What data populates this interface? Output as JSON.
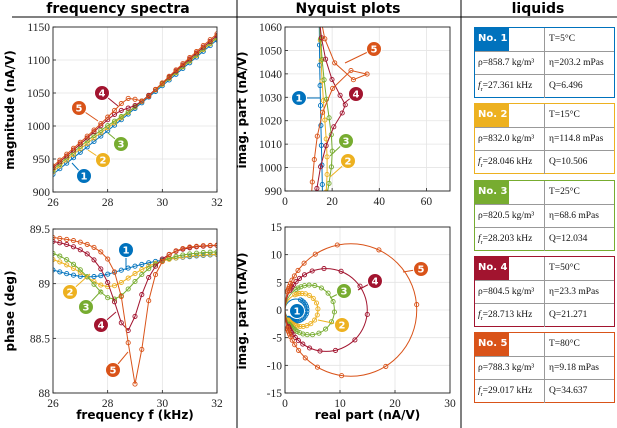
{
  "panels": {
    "spectra_title": "frequency spectra",
    "nyquist_title": "Nyquist plots",
    "liquids_title": "liquids"
  },
  "colors": [
    "#0072BD",
    "#EDB120",
    "#77AC30",
    "#A2142F",
    "#D95319"
  ],
  "callout_labels": [
    "1",
    "2",
    "3",
    "4",
    "5"
  ],
  "liquids": {
    "fr_symbol": "f",
    "fr_sub": "r",
    "items": [
      {
        "no": "No. 1",
        "T": "T=5°C",
        "rho": "ρ=858.7 kg/m³",
        "eta": "η=203.2 mPas",
        "fr": "=27.361 kHz",
        "Q": "Q=6.496"
      },
      {
        "no": "No. 2",
        "T": "T=15°C",
        "rho": "ρ=832.0 kg/m³",
        "eta": "η=114.8 mPas",
        "fr": "=28.046 kHz",
        "Q": "Q=10.506"
      },
      {
        "no": "No. 3",
        "T": "T=25°C",
        "rho": "ρ=820.5 kg/m³",
        "eta": "η=68.6 mPas",
        "fr": "=28.203 kHz",
        "Q": "Q=12.034"
      },
      {
        "no": "No. 4",
        "T": "T=50°C",
        "rho": "ρ=804.5 kg/m³",
        "eta": "η=23.3 mPas",
        "fr": "=28.713 kHz",
        "Q": "Q=21.271"
      },
      {
        "no": "No. 5",
        "T": "T=80°C",
        "rho": "ρ=788.3 kg/m³",
        "eta": "η=9.18 mPas",
        "fr": "=29.017 kHz",
        "Q": "Q=34.637"
      }
    ]
  },
  "chart_data": [
    {
      "type": "line",
      "xlabel": "",
      "ylabel": "magnitude (nA/V)",
      "xlim": [
        26,
        32
      ],
      "ylim": [
        900,
        1150
      ],
      "xticks": [
        26,
        28,
        30,
        32
      ],
      "yticks": [
        900,
        950,
        1000,
        1050,
        1100,
        1150
      ],
      "grid": true,
      "x": [
        26,
        26.25,
        26.5,
        26.75,
        27,
        27.25,
        27.5,
        27.75,
        28,
        28.25,
        28.5,
        28.75,
        29,
        29.25,
        29.5,
        29.75,
        30,
        30.25,
        30.5,
        30.75,
        31,
        31.25,
        31.5,
        31.75,
        32
      ],
      "series": [
        {
          "values": [
            926.8,
            935.3,
            943.7,
            952.0,
            960.2,
            968.3,
            976.5,
            984.7,
            992.9,
            1001.2,
            1009.6,
            1018.1,
            1026.6,
            1035.1,
            1043.8,
            1052.4,
            1061.1,
            1069.7,
            1078.4,
            1087.1,
            1095.8,
            1104.4,
            1113.2,
            1121.8,
            1130.5
          ]
        },
        {
          "values": [
            930.7,
            939.5,
            948.3,
            956.9,
            965.4,
            973.7,
            981.9,
            989.7,
            997.2,
            1004.7,
            1012.4,
            1020.4,
            1028.7,
            1037.1,
            1045.8,
            1054.5,
            1063.2,
            1071.9,
            1080.8,
            1089.5,
            1098.2,
            1107.0,
            1115.8,
            1124.5,
            1133.2
          ]
        },
        {
          "values": [
            933.7,
            942.6,
            951.5,
            960.3,
            969.0,
            977.5,
            985.8,
            993.4,
            1000.5,
            1007.2,
            1014.2,
            1021.4,
            1029.3,
            1037.6,
            1046.3,
            1055.1,
            1063.9,
            1072.7,
            1081.7,
            1090.5,
            1099.3,
            1108.1,
            1117.0,
            1125.7,
            1134.5
          ]
        },
        {
          "values": [
            936.5,
            945.4,
            954.5,
            963.5,
            972.6,
            981.8,
            991.2,
            1000.5,
            1009.5,
            1017.6,
            1023.6,
            1027.1,
            1031.1,
            1037.8,
            1046.4,
            1055.5,
            1064.8,
            1074.1,
            1083.4,
            1092.4,
            1101.4,
            1110.4,
            1119.4,
            1128.2,
            1137.0
          ]
        },
        {
          "values": [
            939.3,
            948.2,
            957.2,
            966.2,
            975.3,
            984.5,
            993.9,
            1003.5,
            1013.5,
            1023.7,
            1034.0,
            1041.8,
            1040.5,
            1037.9,
            1044.9,
            1055.1,
            1065.3,
            1075.3,
            1085.0,
            1094.4,
            1103.7,
            1112.8,
            1121.9,
            1130.8,
            1139.7
          ]
        }
      ]
    },
    {
      "type": "line",
      "xlabel": "frequency f (kHz)",
      "ylabel": "phase (deg)",
      "xlim": [
        26,
        32
      ],
      "ylim": [
        88,
        89.5
      ],
      "xticks": [
        26,
        28,
        30,
        32
      ],
      "yticks": [
        88,
        88.5,
        89,
        89.5
      ],
      "grid": true,
      "x": [
        26,
        26.25,
        26.5,
        26.75,
        27,
        27.25,
        27.5,
        27.75,
        28,
        28.25,
        28.5,
        28.75,
        29,
        29.25,
        29.5,
        29.75,
        30,
        30.25,
        30.5,
        30.75,
        31,
        31.25,
        31.5,
        31.75,
        32
      ],
      "series": [
        {
          "values": [
            89.125,
            89.108,
            89.091,
            89.077,
            89.067,
            89.062,
            89.065,
            89.073,
            89.087,
            89.104,
            89.123,
            89.142,
            89.16,
            89.176,
            89.191,
            89.204,
            89.215,
            89.225,
            89.234,
            89.241,
            89.247,
            89.253,
            89.258,
            89.262,
            89.266
          ]
        },
        {
          "values": [
            89.22,
            89.199,
            89.172,
            89.14,
            89.103,
            89.061,
            89.02,
            88.987,
            88.973,
            88.981,
            89.011,
            89.051,
            89.092,
            89.13,
            89.162,
            89.186,
            89.206,
            89.223,
            89.235,
            89.244,
            89.252,
            89.258,
            89.263,
            89.266,
            89.269
          ]
        },
        {
          "values": [
            89.277,
            89.252,
            89.219,
            89.177,
            89.127,
            89.064,
            88.994,
            88.924,
            88.872,
            88.859,
            88.89,
            88.951,
            89.02,
            89.084,
            89.137,
            89.177,
            89.209,
            89.232,
            89.249,
            89.262,
            89.272,
            89.279,
            89.284,
            89.288,
            89.291
          ]
        },
        {
          "values": [
            89.386,
            89.374,
            89.358,
            89.337,
            89.31,
            89.272,
            89.217,
            89.135,
            89.011,
            88.834,
            88.642,
            88.572,
            88.701,
            88.9,
            89.056,
            89.16,
            89.226,
            89.268,
            89.296,
            89.315,
            89.328,
            89.337,
            89.343,
            89.347,
            89.349
          ]
        },
        {
          "values": [
            89.422,
            89.414,
            89.405,
            89.394,
            89.379,
            89.359,
            89.332,
            89.291,
            89.225,
            89.108,
            88.882,
            88.46,
            88.081,
            88.399,
            88.844,
            89.083,
            89.202,
            89.265,
            89.301,
            89.322,
            89.335,
            89.342,
            89.347,
            89.35,
            89.352
          ]
        }
      ]
    },
    {
      "type": "line",
      "xlabel": "",
      "ylabel": "imag. part (nA/V)",
      "xlim": [
        0,
        70
      ],
      "ylim": [
        990,
        1060
      ],
      "xticks": [
        0,
        20,
        40,
        60
      ],
      "yticks": [
        990,
        1000,
        1010,
        1020,
        1030,
        1040,
        1050,
        1060
      ],
      "grid": true
    },
    {
      "type": "line",
      "xlabel": "real part (nA/V)",
      "ylabel": "imag. part (nA/V)",
      "xlim": [
        0,
        30
      ],
      "ylim": [
        -15,
        15
      ],
      "xticks": [
        0,
        10,
        20,
        30
      ],
      "yticks": [
        -15,
        -10,
        -5,
        0,
        5,
        10,
        15
      ],
      "grid": true,
      "series": [
        {
          "re": [
            2.82,
            3.13,
            3.43,
            3.69,
            3.89,
            3.99,
            3.98,
            3.87,
            3.66,
            3.4,
            3.09,
            2.79,
            2.49,
            2.22,
            1.97,
            1.75,
            1.56,
            1.39,
            1.24,
            1.11,
            1.0,
            0.91,
            0.82,
            0.75,
            0.68
          ],
          "im": [
            1.82,
            1.65,
            1.4,
            1.07,
            0.67,
            0.21,
            -0.26,
            -0.72,
            -1.11,
            -1.43,
            -1.67,
            -1.84,
            -1.94,
            -1.99,
            -2.0,
            -1.98,
            -1.95,
            -1.91,
            -1.85,
            -1.79,
            -1.73,
            -1.68,
            -1.61,
            -1.56,
            -1.5
          ]
        },
        {
          "re": [
            1.79,
            2.13,
            2.56,
            3.09,
            3.72,
            4.43,
            5.14,
            5.72,
            5.99,
            5.87,
            5.38,
            4.69,
            3.97,
            3.31,
            2.74,
            2.28,
            1.91,
            1.61,
            1.37,
            1.18,
            1.02,
            0.89,
            0.78,
            0.69,
            0.61
          ],
          "im": [
            2.74,
            2.87,
            2.96,
            3.0,
            2.92,
            2.64,
            2.1,
            1.27,
            0.2,
            -0.9,
            -1.83,
            -2.47,
            -2.84,
            -2.99,
            -2.98,
            -2.91,
            -2.8,
            -2.66,
            -2.52,
            -2.39,
            -2.26,
            -2.14,
            -2.02,
            -1.91,
            -1.81
          ]
        },
        {
          "re": [
            1.99,
            2.38,
            2.89,
            3.55,
            4.38,
            5.42,
            6.62,
            7.83,
            8.74,
            8.98,
            8.46,
            7.39,
            6.16,
            5.0,
            4.04,
            3.28,
            2.68,
            2.22,
            1.86,
            1.57,
            1.34,
            1.16,
            1.01,
            0.89,
            0.78
          ],
          "im": [
            3.74,
            3.97,
            4.2,
            4.4,
            4.5,
            4.41,
            3.97,
            3.03,
            1.51,
            -0.36,
            -2.14,
            -3.45,
            -4.19,
            -4.47,
            -4.47,
            -4.33,
            -4.11,
            -3.88,
            -3.65,
            -3.41,
            -3.2,
            -3.02,
            -2.84,
            -2.69,
            -2.53
          ]
        },
        {
          "re": [
            0.87,
            1.05,
            1.28,
            1.59,
            2.02,
            2.63,
            3.55,
            4.94,
            7.09,
            10.2,
            13.64,
            14.96,
            12.7,
            9.18,
            6.36,
            4.47,
            3.23,
            2.43,
            1.87,
            1.48,
            1.2,
            0.99,
            0.83,
            0.71,
            0.61
          ],
          "im": [
            3.51,
            3.82,
            4.19,
            4.61,
            5.12,
            5.71,
            6.37,
            7.05,
            7.49,
            7.0,
            4.31,
            -0.82,
            -5.4,
            -7.31,
            -7.42,
            -6.87,
            -6.16,
            -5.53,
            -4.95,
            -4.47,
            -4.07,
            -3.72,
            -3.43,
            -3.2,
            -2.97
          ]
        },
        {
          "re": [
            0.45,
            0.54,
            0.65,
            0.79,
            0.99,
            1.28,
            1.7,
            2.37,
            3.48,
            5.51,
            9.51,
            17.07,
            23.95,
            18.33,
            10.3,
            5.91,
            3.69,
            2.48,
            1.77,
            1.33,
            1.03,
            0.82,
            0.66,
            0.55,
            0.46
          ],
          "im": [
            3.27,
            3.55,
            3.89,
            4.29,
            4.78,
            5.39,
            6.16,
            7.15,
            8.45,
            10.09,
            11.74,
            10.87,
            0.98,
            -10.19,
            -11.88,
            -10.34,
            -8.66,
            -7.31,
            -6.28,
            -5.48,
            -4.85,
            -4.35,
            -3.94,
            -3.6,
            -3.3
          ]
        }
      ]
    }
  ]
}
